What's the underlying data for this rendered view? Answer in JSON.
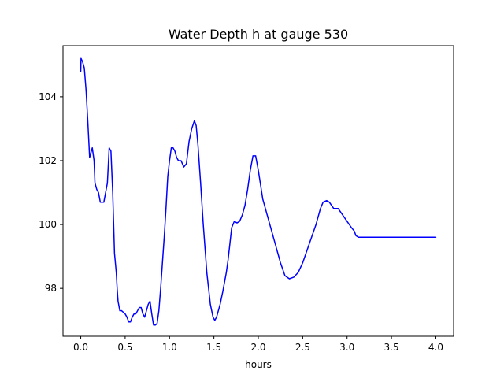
{
  "chart_data": {
    "type": "line",
    "title": "Water Depth h at gauge 530",
    "xlabel": "hours",
    "ylabel": "",
    "xlim": [
      -0.2,
      4.2
    ],
    "ylim": [
      96.5,
      105.6
    ],
    "grid": false,
    "legend": "none",
    "xticks": [
      0.0,
      0.5,
      1.0,
      1.5,
      2.0,
      2.5,
      3.0,
      3.5,
      4.0
    ],
    "xtick_labels": [
      "0.0",
      "0.5",
      "1.0",
      "1.5",
      "2.0",
      "2.5",
      "3.0",
      "3.5",
      "4.0"
    ],
    "yticks": [
      98,
      100,
      102,
      104
    ],
    "ytick_labels": [
      "98",
      "100",
      "102",
      "104"
    ],
    "series": [
      {
        "color": "#0000ff",
        "x": [
          0.0,
          0.003,
          0.02,
          0.04,
          0.06,
          0.08,
          0.1,
          0.12,
          0.13,
          0.15,
          0.16,
          0.18,
          0.2,
          0.22,
          0.24,
          0.26,
          0.28,
          0.3,
          0.32,
          0.34,
          0.36,
          0.38,
          0.4,
          0.41,
          0.42,
          0.44,
          0.46,
          0.48,
          0.5,
          0.52,
          0.54,
          0.56,
          0.58,
          0.6,
          0.62,
          0.64,
          0.66,
          0.68,
          0.7,
          0.72,
          0.74,
          0.76,
          0.78,
          0.8,
          0.82,
          0.84,
          0.86,
          0.88,
          0.9,
          0.92,
          0.94,
          0.96,
          0.98,
          1.0,
          1.02,
          1.04,
          1.06,
          1.08,
          1.1,
          1.13,
          1.16,
          1.19,
          1.22,
          1.25,
          1.28,
          1.3,
          1.32,
          1.35,
          1.38,
          1.42,
          1.46,
          1.49,
          1.51,
          1.53,
          1.55,
          1.57,
          1.6,
          1.62,
          1.64,
          1.66,
          1.68,
          1.7,
          1.73,
          1.76,
          1.79,
          1.82,
          1.85,
          1.88,
          1.91,
          1.94,
          1.97,
          2.0,
          2.05,
          2.1,
          2.15,
          2.2,
          2.25,
          2.3,
          2.35,
          2.4,
          2.45,
          2.5,
          2.55,
          2.6,
          2.65,
          2.68,
          2.7,
          2.73,
          2.77,
          2.8,
          2.85,
          2.9,
          2.95,
          3.0,
          3.05,
          3.08,
          3.1,
          3.13,
          3.17,
          3.2,
          3.25,
          3.3,
          3.35,
          3.4,
          3.45,
          3.5,
          3.55,
          3.58,
          3.6,
          3.63,
          3.66,
          3.7,
          3.75,
          3.8,
          3.85,
          3.9,
          3.92,
          3.95,
          3.97,
          4.0
        ],
        "y": [
          104.8,
          105.2,
          105.1,
          104.9,
          104.2,
          103.2,
          102.1,
          102.3,
          102.4,
          102.0,
          101.3,
          101.1,
          101.0,
          100.7,
          100.7,
          100.7,
          101.0,
          101.3,
          102.4,
          102.3,
          101.0,
          99.1,
          98.5,
          98.0,
          97.6,
          97.3,
          97.3,
          97.25,
          97.2,
          97.1,
          96.95,
          96.95,
          97.1,
          97.2,
          97.2,
          97.3,
          97.4,
          97.4,
          97.2,
          97.1,
          97.3,
          97.5,
          97.6,
          97.2,
          96.85,
          96.85,
          96.9,
          97.3,
          98.0,
          98.8,
          99.6,
          100.5,
          101.5,
          102.0,
          102.4,
          102.4,
          102.3,
          102.1,
          102.0,
          102.0,
          101.8,
          101.9,
          102.6,
          103.0,
          103.25,
          103.1,
          102.5,
          101.3,
          100.0,
          98.5,
          97.5,
          97.1,
          97.0,
          97.1,
          97.3,
          97.5,
          97.9,
          98.2,
          98.5,
          98.9,
          99.4,
          99.9,
          100.1,
          100.05,
          100.1,
          100.3,
          100.6,
          101.1,
          101.7,
          102.15,
          102.15,
          101.7,
          100.8,
          100.3,
          99.8,
          99.3,
          98.8,
          98.4,
          98.3,
          98.35,
          98.5,
          98.8,
          99.2,
          99.6,
          100.0,
          100.3,
          100.5,
          100.7,
          100.75,
          100.7,
          100.5,
          100.5,
          100.3,
          100.1,
          99.9,
          99.8,
          99.65,
          99.6,
          99.6,
          99.6,
          99.6,
          99.6,
          99.6,
          99.6,
          99.6,
          99.6,
          99.6,
          99.6,
          99.6,
          99.6,
          99.6,
          99.6,
          99.6,
          99.6,
          99.6,
          99.6,
          99.6,
          99.6,
          99.6,
          99.6
        ]
      }
    ]
  }
}
